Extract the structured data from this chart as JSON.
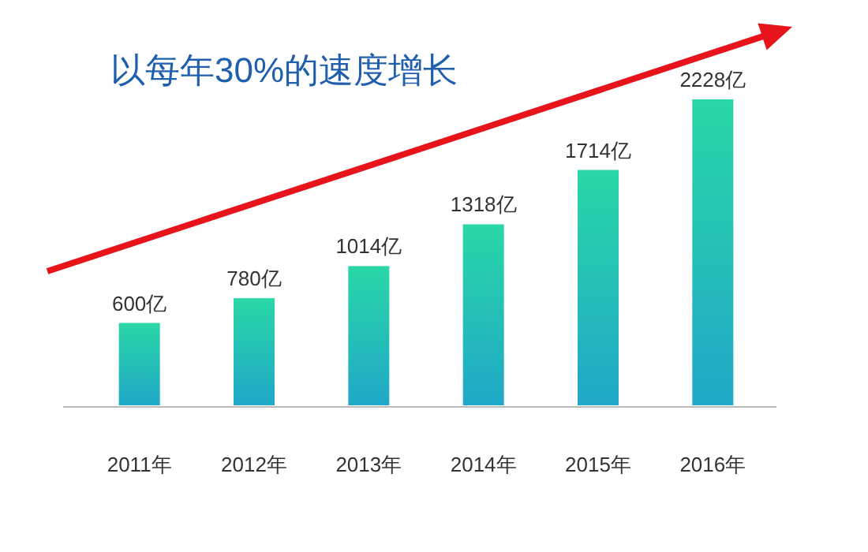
{
  "chart_data": {
    "type": "bar",
    "title": "以每年30%的速度增长",
    "categories": [
      "2011年",
      "2012年",
      "2013年",
      "2014年",
      "2015年",
      "2016年"
    ],
    "values": [
      600,
      780,
      1014,
      1318,
      1714,
      2228
    ],
    "value_labels": [
      "600亿",
      "780亿",
      "1014亿",
      "1318亿",
      "1714亿",
      "2228亿"
    ],
    "color": "#1fa8c8"
  }
}
